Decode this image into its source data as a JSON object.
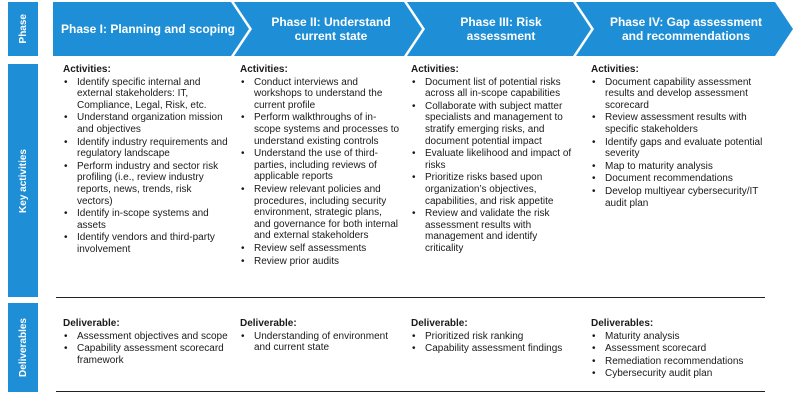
{
  "side_labels": {
    "phase": "Phase",
    "key_activities": "Key activities",
    "deliverables": "Deliverables"
  },
  "colors": {
    "chevron_blue": "#1e8fd6",
    "side_blue": "#1e8fd6"
  },
  "phases": [
    {
      "title": "Phase I: Planning and scoping"
    },
    {
      "title": "Phase II: Understand current state"
    },
    {
      "title": "Phase III: Risk assessment"
    },
    {
      "title": "Phase IV: Gap assessment and recommendations"
    }
  ],
  "activities": [
    {
      "heading": "Activities:",
      "items": [
        "Identify specific internal and external stakeholders: IT, Compliance, Legal, Risk, etc.",
        "Understand organization mission and objectives",
        "Identify industry requirements and regulatory landscape",
        "Perform industry and sector risk profiling (i.e., review industry reports, news, trends, risk vectors)",
        "Identify in-scope systems and assets",
        "Identify vendors and third-party involvement"
      ]
    },
    {
      "heading": "Activities:",
      "items": [
        "Conduct interviews and workshops to understand the current profile",
        "Perform walkthroughs of in-scope systems and processes to understand existing controls",
        "Understand the use of third-parties, including reviews of applicable reports",
        "Review relevant policies and procedures, including security environment, strategic plans, and governance for both internal and external stakeholders",
        "Review self assessments",
        "Review prior audits"
      ]
    },
    {
      "heading": "Activities:",
      "items": [
        "Document list of potential risks across all in-scope capabilities",
        "Collaborate with subject matter specialists and management to stratify emerging risks, and document potential impact",
        "Evaluate likelihood and impact of risks",
        "Prioritize risks based upon organization’s objectives, capabilities, and risk appetite",
        "Review and validate the risk assessment results with management and identify criticality"
      ]
    },
    {
      "heading": "Activities:",
      "items": [
        "Document capability assessment results and develop assessment scorecard",
        "Review assessment results with specific stakeholders",
        "Identify gaps and evaluate potential severity",
        "Map to maturity analysis",
        "Document recommendations",
        "Develop multiyear cybersecurity/IT audit plan"
      ]
    }
  ],
  "deliverables": [
    {
      "heading": "Deliverable:",
      "items": [
        "Assessment objectives and scope",
        "Capability assessment scorecard framework"
      ]
    },
    {
      "heading": "Deliverable:",
      "items": [
        "Understanding of environment and current state"
      ]
    },
    {
      "heading": "Deliverable:",
      "items": [
        "Prioritized risk ranking",
        "Capability assessment findings"
      ]
    },
    {
      "heading": "Deliverables:",
      "items": [
        "Maturity analysis",
        "Assessment scorecard",
        "Remediation recommendations",
        "Cybersecurity audit plan"
      ]
    }
  ]
}
